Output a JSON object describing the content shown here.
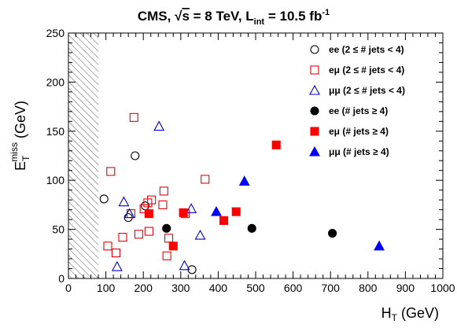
{
  "chart_data": {
    "type": "scatter",
    "title": {
      "prefix": "CMS, ",
      "sqrt_symbol": "√",
      "sqrt_arg": "s",
      "energy": " = 8 TeV, L",
      "lumi_sub": "int",
      "lumi_value": " = 10.5 fb",
      "lumi_sup": "-1"
    },
    "xlabel": {
      "main": "H",
      "sub": "T",
      "unit": " (GeV)"
    },
    "ylabel": {
      "main": "E",
      "sub": "T",
      "sup": "miss",
      "unit": " (GeV)"
    },
    "xlim": [
      0,
      1000
    ],
    "ylim": [
      0,
      250
    ],
    "xticks": [
      0,
      100,
      200,
      300,
      400,
      500,
      600,
      700,
      800,
      900,
      1000
    ],
    "yticks": [
      0,
      50,
      100,
      150,
      200,
      250
    ],
    "hatched_region_x": [
      0,
      80
    ],
    "grid": false,
    "legend_position": "top-right",
    "series": [
      {
        "name": "ee (2 ≤ # jets < 4)",
        "marker": "circle-open",
        "color": "#000000",
        "points": [
          [
            95,
            81
          ],
          [
            178,
            125
          ],
          [
            160,
            62
          ],
          [
            205,
            74
          ],
          [
            330,
            9
          ]
        ]
      },
      {
        "name": "eμ (2 ≤ # jets < 4)",
        "marker": "square-open",
        "color": "#e8000b",
        "points": [
          [
            175,
            164
          ],
          [
            113,
            109
          ],
          [
            365,
            101
          ],
          [
            255,
            89
          ],
          [
            222,
            80
          ],
          [
            212,
            77
          ],
          [
            252,
            75
          ],
          [
            202,
            71
          ],
          [
            167,
            66
          ],
          [
            312,
            66
          ],
          [
            215,
            48
          ],
          [
            188,
            45
          ],
          [
            145,
            42
          ],
          [
            268,
            41
          ],
          [
            105,
            33
          ],
          [
            127,
            26
          ],
          [
            263,
            23
          ]
        ]
      },
      {
        "name": "μμ (2 ≤ # jets < 4)",
        "marker": "triangle-open",
        "color": "#0000d0",
        "points": [
          [
            242,
            155
          ],
          [
            148,
            78
          ],
          [
            163,
            66
          ],
          [
            328,
            71
          ],
          [
            352,
            44
          ],
          [
            130,
            12
          ],
          [
            310,
            13
          ]
        ]
      },
      {
        "name": "ee (# jets ≥ 4)",
        "marker": "circle",
        "color": "#000000",
        "points": [
          [
            262,
            51
          ],
          [
            490,
            51
          ],
          [
            705,
            46
          ]
        ]
      },
      {
        "name": "eμ (# jets ≥ 4)",
        "marker": "square",
        "color": "#ff0000",
        "points": [
          [
            555,
            136
          ],
          [
            307,
            67
          ],
          [
            448,
            68
          ],
          [
            215,
            66
          ],
          [
            415,
            59
          ],
          [
            280,
            33
          ]
        ]
      },
      {
        "name": "μμ (# jets ≥ 4)",
        "marker": "triangle",
        "color": "#0000ff",
        "points": [
          [
            470,
            99
          ],
          [
            395,
            68
          ],
          [
            830,
            33
          ]
        ]
      }
    ]
  }
}
